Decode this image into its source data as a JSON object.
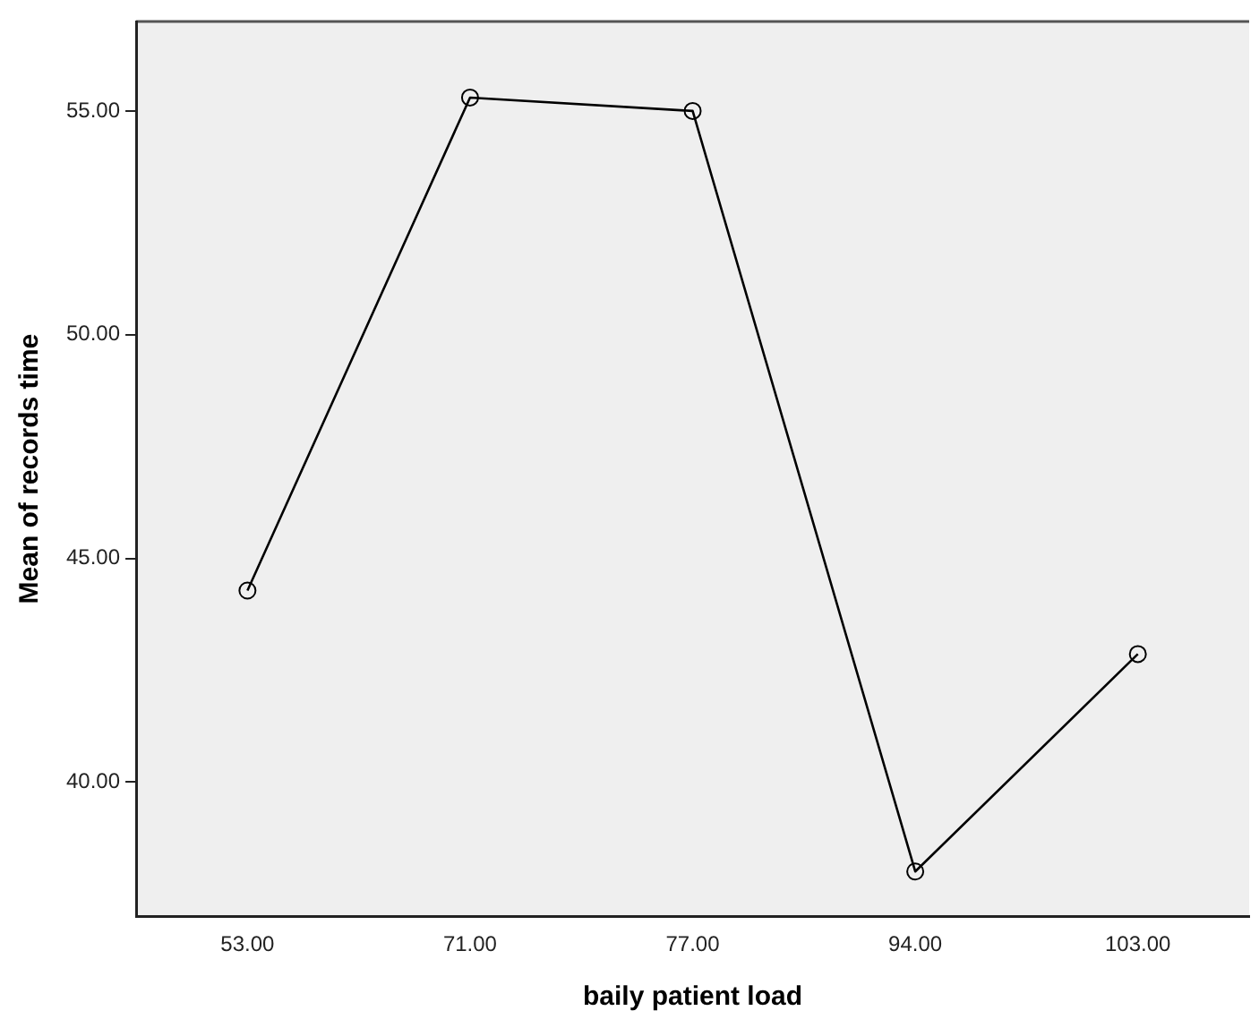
{
  "chart_data": {
    "type": "line",
    "xlabel": "baily patient load",
    "ylabel": "Mean of records time",
    "categories": [
      "53.00",
      "71.00",
      "77.00",
      "94.00",
      "103.00"
    ],
    "series": [
      {
        "color": "#000000",
        "values": [
          44.28,
          55.3,
          55.0,
          38.0,
          42.86
        ]
      }
    ],
    "ylim": [
      37,
      57
    ],
    "yticks": [
      {
        "value": 40,
        "label": "40.00"
      },
      {
        "value": 45,
        "label": "45.00"
      },
      {
        "value": 50,
        "label": "50.00"
      },
      {
        "value": 55,
        "label": "55.00"
      }
    ],
    "grid": false,
    "legend": false,
    "marker": "circle",
    "line_style": "solid"
  }
}
